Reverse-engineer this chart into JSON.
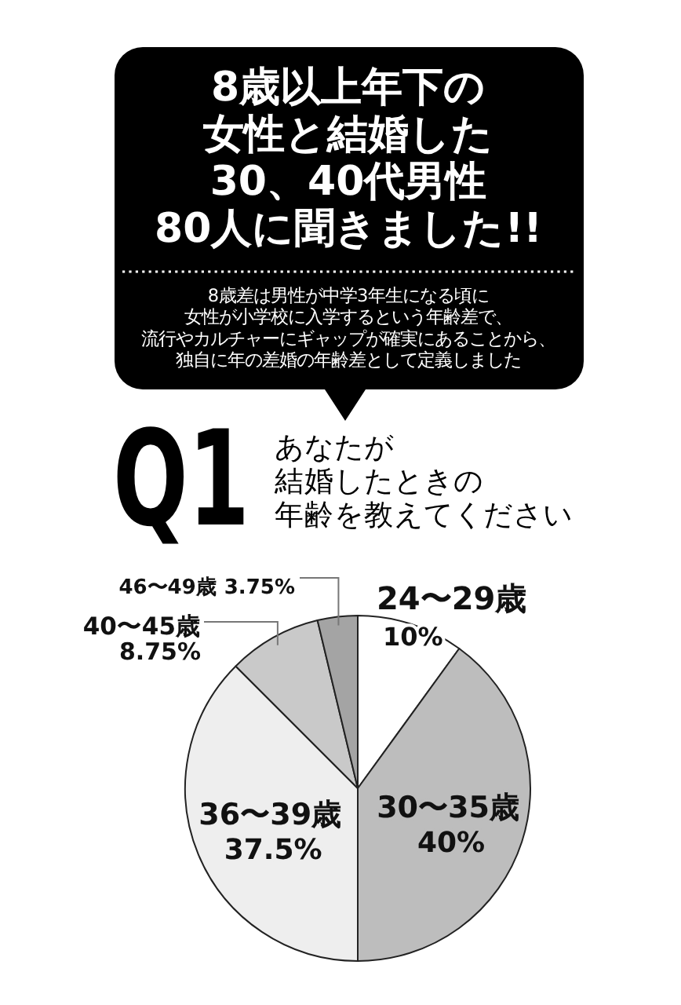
{
  "chart_data": {
    "type": "pie",
    "title": "8歳以上年下の女性と結婚した30、40代男性80人に聞きました!!",
    "subtitle": "8歳差は男性が中学3年生になる頃に女性が小学校に入学するという年齢差で、流行やカルチャーにギャップが確実にあることから、独自に年の差婚の年齢差として定義しました",
    "annotations": [
      "Q1",
      "あなたが結婚したときの年齢を教えてください"
    ],
    "categories": [
      "24〜29歳",
      "30〜35歳",
      "36〜39歳",
      "40〜45歳",
      "46〜49歳"
    ],
    "values": [
      10,
      40,
      37.5,
      8.75,
      3.75
    ],
    "value_labels": [
      "10%",
      "40%",
      "37.5%",
      "8.75%",
      "3.75%"
    ],
    "colors": [
      "#ffffff",
      "#bdbdbd",
      "#eeeeee",
      "#c9c9c9",
      "#a4a4a4"
    ]
  }
}
